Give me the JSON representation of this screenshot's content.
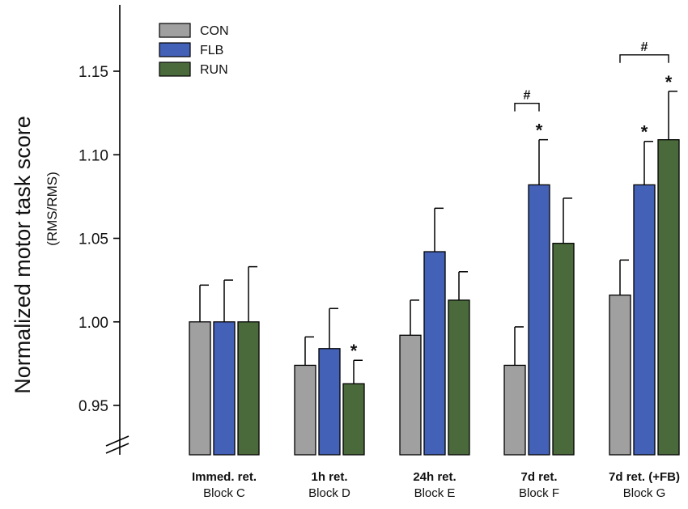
{
  "chart_data": {
    "type": "bar",
    "ylabel": "Normalized motor task score",
    "ylabel_sub": "(RMS/RMS)",
    "ylim": [
      0.93,
      1.19
    ],
    "yticks": [
      "0.95",
      "1.00",
      "1.05",
      "1.10",
      "1.15"
    ],
    "axis_break": true,
    "legend_position": "top-left",
    "groups": [
      {
        "label": "Immed. ret.",
        "sublabel": "Block C"
      },
      {
        "label": "1h ret.",
        "sublabel": "Block D"
      },
      {
        "label": "24h ret.",
        "sublabel": "Block E"
      },
      {
        "label": "7d ret.",
        "sublabel": "Block F"
      },
      {
        "label": "7d ret. (+FB)",
        "sublabel": "Block G"
      }
    ],
    "series": [
      {
        "name": "CON",
        "color": "#a0a0a0",
        "values": [
          1.0,
          0.974,
          0.992,
          0.974,
          1.016
        ],
        "errors": [
          0.022,
          0.017,
          0.021,
          0.023,
          0.021
        ],
        "significant": [
          false,
          false,
          false,
          false,
          false
        ]
      },
      {
        "name": "FLB",
        "color": "#4461b8",
        "values": [
          1.0,
          0.984,
          1.042,
          1.082,
          1.082
        ],
        "errors": [
          0.025,
          0.024,
          0.026,
          0.027,
          0.026
        ],
        "significant": [
          false,
          false,
          false,
          true,
          true
        ]
      },
      {
        "name": "RUN",
        "color": "#4a6a3c",
        "values": [
          1.0,
          0.963,
          1.013,
          1.047,
          1.109
        ],
        "errors": [
          0.033,
          0.014,
          0.017,
          0.027,
          0.029
        ],
        "significant": [
          false,
          true,
          false,
          false,
          true
        ]
      }
    ],
    "star_label": "*",
    "hash_label": "#",
    "brackets": [
      {
        "group": 3,
        "from_series": 0,
        "to_series": 1
      },
      {
        "group": 4,
        "from_series": 0,
        "to_series": 2
      }
    ]
  }
}
